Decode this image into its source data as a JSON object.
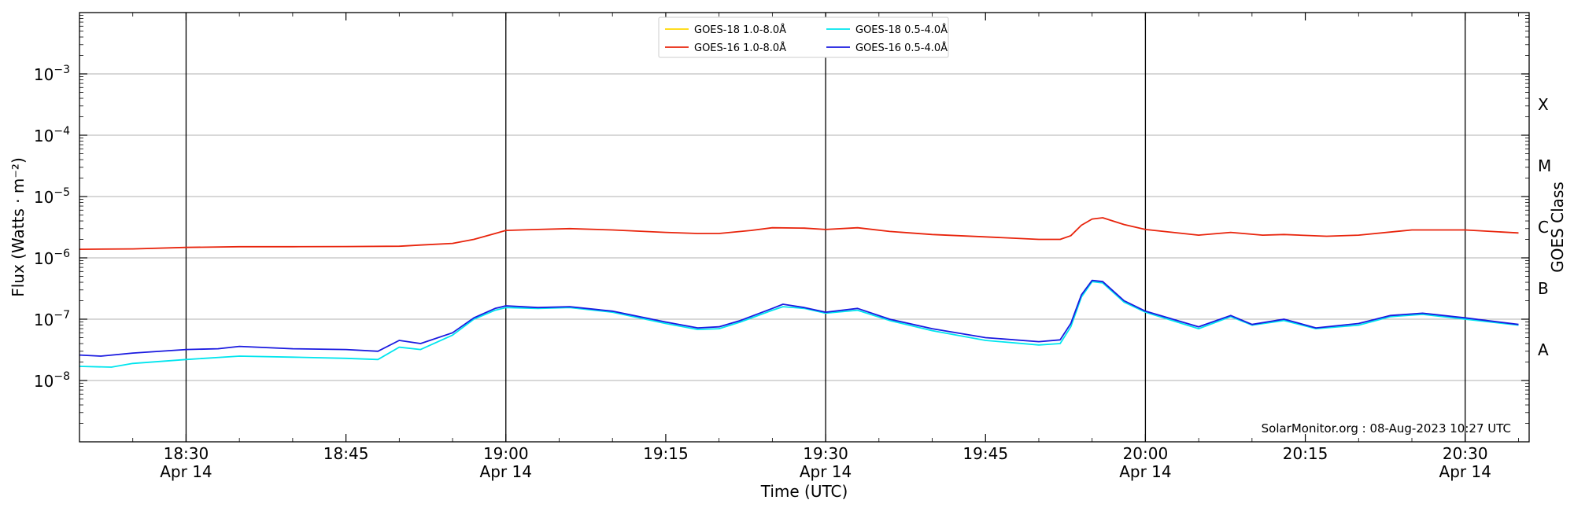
{
  "chart_data": {
    "type": "line",
    "xlabel": "Time (UTC)",
    "ylabel": "Flux (Watts · m⁻²)",
    "right_label": "GOES Class",
    "watermark": "SolarMonitor.org : 08-Aug-2023 10:27 UTC",
    "x_range_minutes": [
      "18:20",
      "20:36"
    ],
    "y_scale": "log",
    "y_range": [
      1e-09,
      0.01
    ],
    "grid": "horizontal at decades, vertical black lines at 18:30, 19:00, 19:30, 20:00, 20:30",
    "legend_placement": "top-center",
    "x_ticks": [
      {
        "time": "18:30",
        "label": "18:30",
        "date": "Apr 14",
        "major": true
      },
      {
        "time": "18:45",
        "label": "18:45",
        "date": "",
        "major": false
      },
      {
        "time": "19:00",
        "label": "19:00",
        "date": "Apr 14",
        "major": true
      },
      {
        "time": "19:15",
        "label": "19:15",
        "date": "",
        "major": false
      },
      {
        "time": "19:30",
        "label": "19:30",
        "date": "Apr 14",
        "major": true
      },
      {
        "time": "19:45",
        "label": "19:45",
        "date": "",
        "major": false
      },
      {
        "time": "20:00",
        "label": "20:00",
        "date": "Apr 14",
        "major": true
      },
      {
        "time": "20:15",
        "label": "20:15",
        "date": "",
        "major": false
      },
      {
        "time": "20:30",
        "label": "20:30",
        "date": "Apr 14",
        "major": true
      }
    ],
    "y_ticks": [
      {
        "exp": -3,
        "label": "10",
        "sup": "−3"
      },
      {
        "exp": -4,
        "label": "10",
        "sup": "−4"
      },
      {
        "exp": -5,
        "label": "10",
        "sup": "−5"
      },
      {
        "exp": -6,
        "label": "10",
        "sup": "−6"
      },
      {
        "exp": -7,
        "label": "10",
        "sup": "−7"
      },
      {
        "exp": -8,
        "label": "10",
        "sup": "−8"
      }
    ],
    "goes_classes": [
      {
        "label": "X",
        "flux": 0.0001
      },
      {
        "label": "M",
        "flux": 1e-05
      },
      {
        "label": "C",
        "flux": 1e-06
      },
      {
        "label": "B",
        "flux": 1e-07
      },
      {
        "label": "A",
        "flux": 1e-08
      }
    ],
    "series": [
      {
        "name": "GOES-18 1.0-8.0Å",
        "color": "#ffd700",
        "points": []
      },
      {
        "name": "GOES-16 1.0-8.0Å",
        "color": "#e8240c",
        "points": [
          [
            "18:20",
            1.38e-06
          ],
          [
            "18:25",
            1.4e-06
          ],
          [
            "18:30",
            1.48e-06
          ],
          [
            "18:35",
            1.52e-06
          ],
          [
            "18:40",
            1.52e-06
          ],
          [
            "18:45",
            1.53e-06
          ],
          [
            "18:50",
            1.55e-06
          ],
          [
            "18:52",
            1.62e-06
          ],
          [
            "18:55",
            1.72e-06
          ],
          [
            "18:57",
            2e-06
          ],
          [
            "18:59",
            2.5e-06
          ],
          [
            "19:00",
            2.8e-06
          ],
          [
            "19:03",
            2.9e-06
          ],
          [
            "19:06",
            3e-06
          ],
          [
            "19:10",
            2.85e-06
          ],
          [
            "19:15",
            2.6e-06
          ],
          [
            "19:18",
            2.5e-06
          ],
          [
            "19:20",
            2.5e-06
          ],
          [
            "19:23",
            2.8e-06
          ],
          [
            "19:25",
            3.1e-06
          ],
          [
            "19:28",
            3.05e-06
          ],
          [
            "19:30",
            2.9e-06
          ],
          [
            "19:33",
            3.1e-06
          ],
          [
            "19:36",
            2.7e-06
          ],
          [
            "19:40",
            2.4e-06
          ],
          [
            "19:45",
            2.2e-06
          ],
          [
            "19:50",
            2e-06
          ],
          [
            "19:52",
            2e-06
          ],
          [
            "19:53",
            2.3e-06
          ],
          [
            "19:54",
            3.4e-06
          ],
          [
            "19:55",
            4.3e-06
          ],
          [
            "19:56",
            4.5e-06
          ],
          [
            "19:58",
            3.5e-06
          ],
          [
            "20:00",
            2.9e-06
          ],
          [
            "20:05",
            2.35e-06
          ],
          [
            "20:08",
            2.6e-06
          ],
          [
            "20:11",
            2.35e-06
          ],
          [
            "20:13",
            2.4e-06
          ],
          [
            "20:17",
            2.25e-06
          ],
          [
            "20:20",
            2.35e-06
          ],
          [
            "20:25",
            2.85e-06
          ],
          [
            "20:30",
            2.85e-06
          ],
          [
            "20:35",
            2.55e-06
          ]
        ]
      },
      {
        "name": "GOES-18 0.5-4.0Å",
        "color": "#00e5ee",
        "points": [
          [
            "18:20",
            1.7e-08
          ],
          [
            "18:23",
            1.65e-08
          ],
          [
            "18:25",
            1.9e-08
          ],
          [
            "18:30",
            2.2e-08
          ],
          [
            "18:35",
            2.5e-08
          ],
          [
            "18:40",
            2.4e-08
          ],
          [
            "18:45",
            2.3e-08
          ],
          [
            "18:48",
            2.2e-08
          ],
          [
            "18:50",
            3.5e-08
          ],
          [
            "18:52",
            3.2e-08
          ],
          [
            "18:55",
            5.5e-08
          ],
          [
            "18:57",
            1e-07
          ],
          [
            "18:59",
            1.4e-07
          ],
          [
            "19:00",
            1.55e-07
          ],
          [
            "19:03",
            1.5e-07
          ],
          [
            "19:06",
            1.55e-07
          ],
          [
            "19:10",
            1.3e-07
          ],
          [
            "19:15",
            8.5e-08
          ],
          [
            "19:18",
            6.8e-08
          ],
          [
            "19:20",
            7e-08
          ],
          [
            "19:22",
            9e-08
          ],
          [
            "19:25",
            1.4e-07
          ],
          [
            "19:26",
            1.6e-07
          ],
          [
            "19:28",
            1.5e-07
          ],
          [
            "19:30",
            1.25e-07
          ],
          [
            "19:33",
            1.4e-07
          ],
          [
            "19:36",
            9.5e-08
          ],
          [
            "19:40",
            6.5e-08
          ],
          [
            "19:45",
            4.5e-08
          ],
          [
            "19:50",
            3.8e-08
          ],
          [
            "19:52",
            4e-08
          ],
          [
            "19:53",
            7.5e-08
          ],
          [
            "19:54",
            2.3e-07
          ],
          [
            "19:55",
            4.1e-07
          ],
          [
            "19:56",
            3.9e-07
          ],
          [
            "19:58",
            1.9e-07
          ],
          [
            "20:00",
            1.3e-07
          ],
          [
            "20:05",
            7e-08
          ],
          [
            "20:08",
            1.1e-07
          ],
          [
            "20:10",
            8e-08
          ],
          [
            "20:13",
            9.5e-08
          ],
          [
            "20:16",
            7e-08
          ],
          [
            "20:20",
            8e-08
          ],
          [
            "20:23",
            1.1e-07
          ],
          [
            "20:26",
            1.2e-07
          ],
          [
            "20:30",
            1e-07
          ],
          [
            "20:35",
            8e-08
          ]
        ]
      },
      {
        "name": "GOES-16 0.5-4.0Å",
        "color": "#1a1ae0",
        "points": [
          [
            "18:20",
            2.6e-08
          ],
          [
            "18:22",
            2.5e-08
          ],
          [
            "18:25",
            2.8e-08
          ],
          [
            "18:30",
            3.2e-08
          ],
          [
            "18:33",
            3.3e-08
          ],
          [
            "18:35",
            3.6e-08
          ],
          [
            "18:40",
            3.3e-08
          ],
          [
            "18:45",
            3.2e-08
          ],
          [
            "18:48",
            3e-08
          ],
          [
            "18:50",
            4.5e-08
          ],
          [
            "18:52",
            4e-08
          ],
          [
            "18:55",
            6e-08
          ],
          [
            "18:57",
            1.05e-07
          ],
          [
            "18:59",
            1.5e-07
          ],
          [
            "19:00",
            1.65e-07
          ],
          [
            "19:03",
            1.55e-07
          ],
          [
            "19:06",
            1.6e-07
          ],
          [
            "19:10",
            1.35e-07
          ],
          [
            "19:15",
            9e-08
          ],
          [
            "19:18",
            7.2e-08
          ],
          [
            "19:20",
            7.5e-08
          ],
          [
            "19:22",
            9.5e-08
          ],
          [
            "19:25",
            1.5e-07
          ],
          [
            "19:26",
            1.75e-07
          ],
          [
            "19:28",
            1.55e-07
          ],
          [
            "19:30",
            1.3e-07
          ],
          [
            "19:33",
            1.5e-07
          ],
          [
            "19:36",
            1e-07
          ],
          [
            "19:40",
            7e-08
          ],
          [
            "19:45",
            5e-08
          ],
          [
            "19:50",
            4.3e-08
          ],
          [
            "19:52",
            4.6e-08
          ],
          [
            "19:53",
            8.5e-08
          ],
          [
            "19:54",
            2.5e-07
          ],
          [
            "19:55",
            4.3e-07
          ],
          [
            "19:56",
            4.1e-07
          ],
          [
            "19:58",
            2e-07
          ],
          [
            "20:00",
            1.35e-07
          ],
          [
            "20:05",
            7.5e-08
          ],
          [
            "20:08",
            1.15e-07
          ],
          [
            "20:10",
            8.2e-08
          ],
          [
            "20:13",
            1e-07
          ],
          [
            "20:16",
            7.2e-08
          ],
          [
            "20:20",
            8.5e-08
          ],
          [
            "20:23",
            1.15e-07
          ],
          [
            "20:26",
            1.25e-07
          ],
          [
            "20:30",
            1.05e-07
          ],
          [
            "20:35",
            8.2e-08
          ]
        ]
      }
    ]
  }
}
